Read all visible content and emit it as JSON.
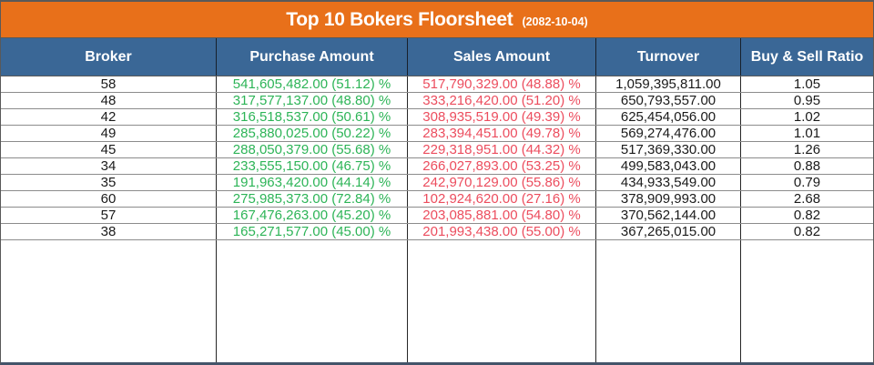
{
  "colors": {
    "title_bar_orange": "#E8701A",
    "header_blue": "#3A6796",
    "purchase_green": "#2DB457",
    "sales_red": "#EC4D5E",
    "frame_navy": "#44546A",
    "grid_dark": "#262626",
    "grid_gray": "#8C8C8C"
  },
  "chart_data": {
    "type": "table",
    "title": "Top 10 Bokers Floorsheet",
    "date": "(2082-10-04)",
    "columns": [
      "Broker",
      "Purchase Amount",
      "Sales Amount",
      "Turnover",
      "Buy & Sell Ratio"
    ],
    "rows": [
      {
        "broker": "58",
        "purchase": "541,605,482.00 (51.12) %",
        "sales": "517,790,329.00 (48.88) %",
        "turnover": "1,059,395,811.00",
        "ratio": "1.05"
      },
      {
        "broker": "48",
        "purchase": "317,577,137.00 (48.80) %",
        "sales": "333,216,420.00 (51.20) %",
        "turnover": "650,793,557.00",
        "ratio": "0.95"
      },
      {
        "broker": "42",
        "purchase": "316,518,537.00 (50.61) %",
        "sales": "308,935,519.00 (49.39) %",
        "turnover": "625,454,056.00",
        "ratio": "1.02"
      },
      {
        "broker": "49",
        "purchase": "285,880,025.00 (50.22) %",
        "sales": "283,394,451.00 (49.78) %",
        "turnover": "569,274,476.00",
        "ratio": "1.01"
      },
      {
        "broker": "45",
        "purchase": "288,050,379.00 (55.68) %",
        "sales": "229,318,951.00 (44.32) %",
        "turnover": "517,369,330.00",
        "ratio": "1.26"
      },
      {
        "broker": "34",
        "purchase": "233,555,150.00 (46.75) %",
        "sales": "266,027,893.00 (53.25) %",
        "turnover": "499,583,043.00",
        "ratio": "0.88"
      },
      {
        "broker": "35",
        "purchase": "191,963,420.00 (44.14) %",
        "sales": "242,970,129.00 (55.86) %",
        "turnover": "434,933,549.00",
        "ratio": "0.79"
      },
      {
        "broker": "60",
        "purchase": "275,985,373.00 (72.84) %",
        "sales": "102,924,620.00 (27.16) %",
        "turnover": "378,909,993.00",
        "ratio": "2.68"
      },
      {
        "broker": "57",
        "purchase": "167,476,263.00 (45.20) %",
        "sales": "203,085,881.00 (54.80) %",
        "turnover": "370,562,144.00",
        "ratio": "0.82"
      },
      {
        "broker": "38",
        "purchase": "165,271,577.00 (45.00) %",
        "sales": "201,993,438.00 (55.00) %",
        "turnover": "367,265,015.00",
        "ratio": "0.82"
      }
    ]
  }
}
